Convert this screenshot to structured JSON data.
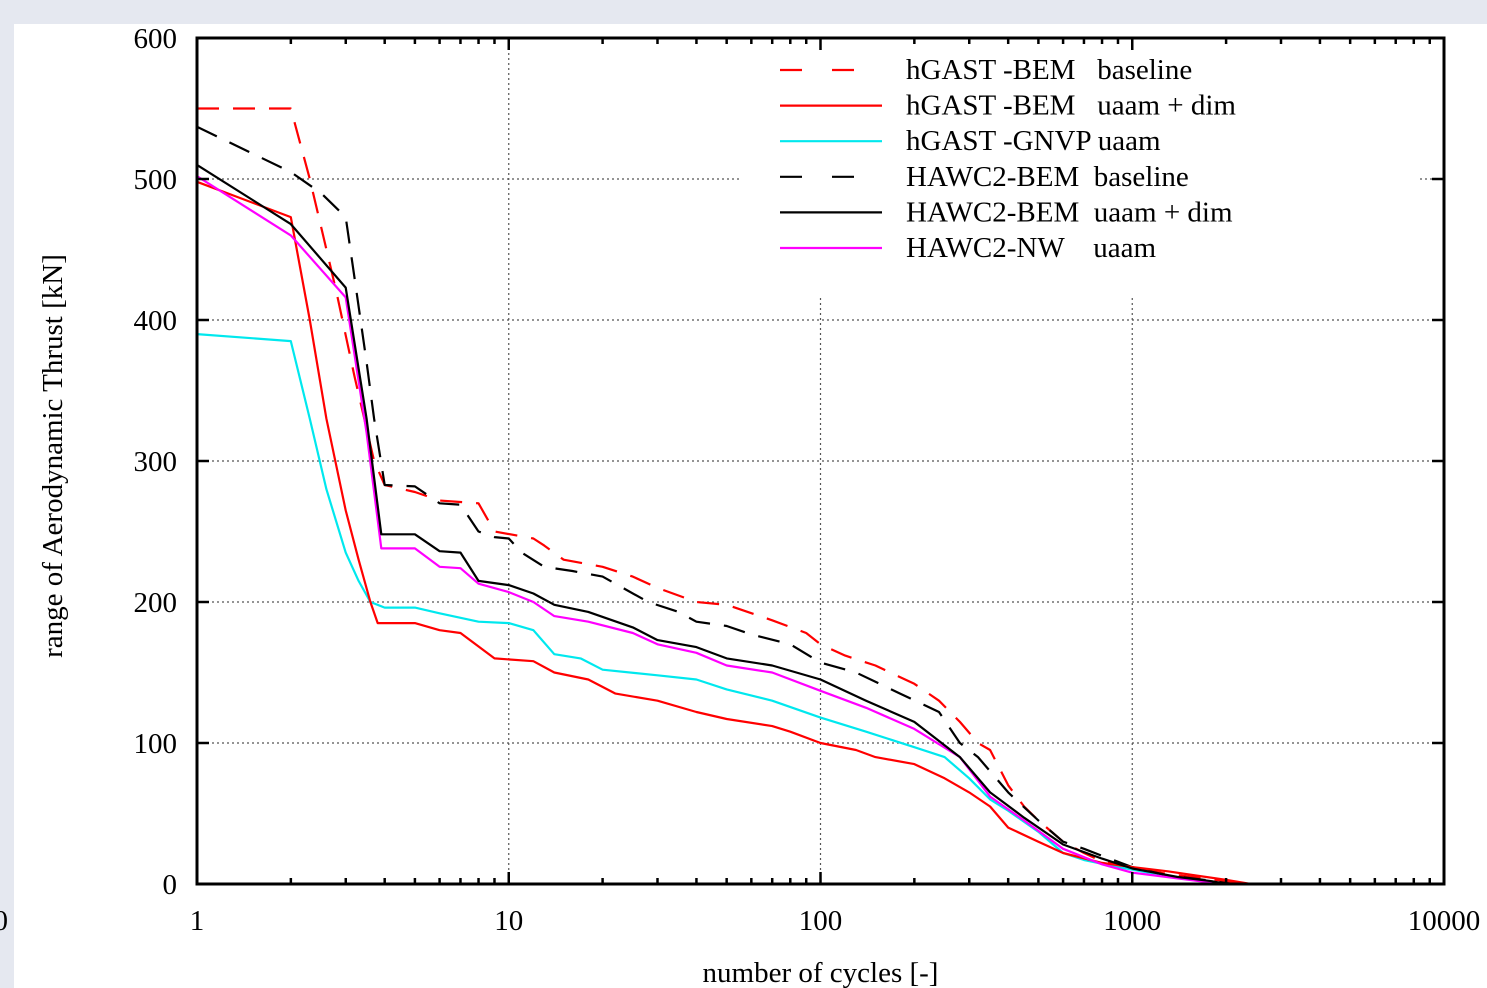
{
  "chart_data": {
    "type": "line",
    "title": "",
    "xlabel": "number of cycles [-]",
    "ylabel": "range of  Aerodynamic Thrust [kN]",
    "x_scale": "log",
    "xlim": [
      1,
      10000
    ],
    "ylim": [
      0,
      600
    ],
    "x_ticks": [
      1,
      10,
      100,
      1000,
      10000
    ],
    "x_tick_labels": [
      "1",
      "10",
      "100",
      "1000",
      "10000"
    ],
    "y_ticks": [
      0,
      100,
      200,
      300,
      400,
      500,
      600
    ],
    "y_tick_labels": [
      "0",
      "100",
      "200",
      "300",
      "400",
      "500",
      "600"
    ],
    "stray_left_label": "0",
    "grid": true,
    "legend_position": "top-right",
    "series": [
      {
        "name": "hGAST -BEM   baseline",
        "color": "#ff0000",
        "dash": "dashed",
        "points": [
          [
            1,
            550
          ],
          [
            2,
            550
          ],
          [
            2.3,
            500
          ],
          [
            2.8,
            420
          ],
          [
            3.2,
            360
          ],
          [
            3.7,
            300
          ],
          [
            4,
            283
          ],
          [
            5,
            278
          ],
          [
            6,
            272
          ],
          [
            8,
            270
          ],
          [
            9,
            250
          ],
          [
            12,
            245
          ],
          [
            13,
            240
          ],
          [
            15,
            230
          ],
          [
            20,
            225
          ],
          [
            25,
            218
          ],
          [
            30,
            210
          ],
          [
            40,
            200
          ],
          [
            50,
            198
          ],
          [
            70,
            187
          ],
          [
            90,
            178
          ],
          [
            100,
            170
          ],
          [
            120,
            162
          ],
          [
            150,
            155
          ],
          [
            200,
            142
          ],
          [
            240,
            130
          ],
          [
            280,
            115
          ],
          [
            320,
            100
          ],
          [
            350,
            95
          ],
          [
            400,
            70
          ],
          [
            450,
            55
          ],
          [
            500,
            45
          ],
          [
            600,
            30
          ],
          [
            700,
            22
          ],
          [
            800,
            16
          ],
          [
            1000,
            12
          ],
          [
            1300,
            7
          ],
          [
            1700,
            4
          ],
          [
            2000,
            2
          ],
          [
            2400,
            0
          ]
        ]
      },
      {
        "name": "hGAST -BEM   uaam + dim",
        "color": "#ff0000",
        "dash": "solid",
        "points": [
          [
            1,
            498
          ],
          [
            2,
            473
          ],
          [
            2.3,
            400
          ],
          [
            2.6,
            330
          ],
          [
            3,
            265
          ],
          [
            3.3,
            230
          ],
          [
            3.6,
            200
          ],
          [
            3.8,
            185
          ],
          [
            5,
            185
          ],
          [
            6,
            180
          ],
          [
            7,
            178
          ],
          [
            9,
            160
          ],
          [
            12,
            158
          ],
          [
            14,
            150
          ],
          [
            18,
            145
          ],
          [
            22,
            135
          ],
          [
            30,
            130
          ],
          [
            40,
            122
          ],
          [
            50,
            117
          ],
          [
            70,
            112
          ],
          [
            80,
            108
          ],
          [
            100,
            100
          ],
          [
            130,
            95
          ],
          [
            150,
            90
          ],
          [
            200,
            85
          ],
          [
            250,
            75
          ],
          [
            300,
            65
          ],
          [
            350,
            55
          ],
          [
            400,
            40
          ],
          [
            500,
            30
          ],
          [
            600,
            22
          ],
          [
            800,
            15
          ],
          [
            1000,
            12
          ],
          [
            1300,
            9
          ],
          [
            1600,
            6
          ],
          [
            2000,
            3
          ],
          [
            2400,
            0
          ]
        ]
      },
      {
        "name": "hGAST -GNVP uaam",
        "color": "#00e8ee",
        "dash": "solid",
        "points": [
          [
            1,
            390
          ],
          [
            2,
            385
          ],
          [
            2.3,
            330
          ],
          [
            2.6,
            280
          ],
          [
            3,
            235
          ],
          [
            3.3,
            215
          ],
          [
            3.6,
            200
          ],
          [
            4,
            196
          ],
          [
            5,
            196
          ],
          [
            6,
            192
          ],
          [
            8,
            186
          ],
          [
            10,
            185
          ],
          [
            12,
            180
          ],
          [
            14,
            163
          ],
          [
            17,
            160
          ],
          [
            20,
            152
          ],
          [
            30,
            148
          ],
          [
            40,
            145
          ],
          [
            50,
            138
          ],
          [
            70,
            130
          ],
          [
            100,
            118
          ],
          [
            140,
            108
          ],
          [
            200,
            97
          ],
          [
            250,
            90
          ],
          [
            300,
            75
          ],
          [
            350,
            60
          ],
          [
            400,
            52
          ],
          [
            500,
            37
          ],
          [
            600,
            22
          ],
          [
            700,
            17
          ],
          [
            900,
            12
          ],
          [
            1200,
            7
          ],
          [
            1600,
            3
          ],
          [
            2000,
            0
          ]
        ]
      },
      {
        "name": "HAWC2-BEM  baseline",
        "color": "#000000",
        "dash": "dashed",
        "points": [
          [
            1,
            537
          ],
          [
            2,
            505
          ],
          [
            2.5,
            490
          ],
          [
            3,
            473
          ],
          [
            3.2,
            430
          ],
          [
            3.5,
            370
          ],
          [
            3.7,
            330
          ],
          [
            4,
            283
          ],
          [
            5,
            282
          ],
          [
            6,
            270
          ],
          [
            7,
            269
          ],
          [
            8,
            250
          ],
          [
            9,
            246
          ],
          [
            10,
            245
          ],
          [
            11,
            235
          ],
          [
            13,
            225
          ],
          [
            16,
            222
          ],
          [
            20,
            218
          ],
          [
            28,
            200
          ],
          [
            35,
            193
          ],
          [
            40,
            186
          ],
          [
            50,
            183
          ],
          [
            60,
            177
          ],
          [
            80,
            170
          ],
          [
            100,
            157
          ],
          [
            130,
            150
          ],
          [
            180,
            135
          ],
          [
            240,
            122
          ],
          [
            280,
            100
          ],
          [
            320,
            90
          ],
          [
            400,
            65
          ],
          [
            500,
            45
          ],
          [
            600,
            30
          ],
          [
            700,
            25
          ],
          [
            800,
            20
          ],
          [
            1000,
            12
          ],
          [
            1300,
            6
          ],
          [
            1700,
            3
          ],
          [
            2100,
            0
          ]
        ]
      },
      {
        "name": "HAWC2-BEM  uaam + dim",
        "color": "#000000",
        "dash": "solid",
        "points": [
          [
            1,
            510
          ],
          [
            2,
            468
          ],
          [
            3,
            423
          ],
          [
            3.5,
            330
          ],
          [
            3.9,
            248
          ],
          [
            5,
            248
          ],
          [
            6,
            236
          ],
          [
            7,
            235
          ],
          [
            8,
            215
          ],
          [
            10,
            212
          ],
          [
            12,
            206
          ],
          [
            14,
            198
          ],
          [
            18,
            193
          ],
          [
            25,
            182
          ],
          [
            30,
            173
          ],
          [
            40,
            168
          ],
          [
            50,
            160
          ],
          [
            70,
            155
          ],
          [
            100,
            145
          ],
          [
            140,
            130
          ],
          [
            200,
            115
          ],
          [
            280,
            90
          ],
          [
            350,
            65
          ],
          [
            450,
            47
          ],
          [
            600,
            28
          ],
          [
            800,
            18
          ],
          [
            1000,
            11
          ],
          [
            1400,
            5
          ],
          [
            1800,
            2
          ],
          [
            2000,
            0
          ]
        ]
      },
      {
        "name": "HAWC2-NW    uaam",
        "color": "#ff00ff",
        "dash": "solid",
        "points": [
          [
            1,
            502
          ],
          [
            2,
            460
          ],
          [
            3,
            416
          ],
          [
            3.5,
            320
          ],
          [
            3.9,
            238
          ],
          [
            5,
            238
          ],
          [
            6,
            225
          ],
          [
            7,
            224
          ],
          [
            8,
            213
          ],
          [
            10,
            207
          ],
          [
            12,
            200
          ],
          [
            14,
            190
          ],
          [
            18,
            186
          ],
          [
            25,
            178
          ],
          [
            30,
            170
          ],
          [
            40,
            164
          ],
          [
            50,
            155
          ],
          [
            70,
            150
          ],
          [
            100,
            137
          ],
          [
            140,
            125
          ],
          [
            200,
            110
          ],
          [
            280,
            90
          ],
          [
            350,
            62
          ],
          [
            450,
            45
          ],
          [
            600,
            25
          ],
          [
            800,
            14
          ],
          [
            1000,
            8
          ],
          [
            1400,
            4
          ],
          [
            1800,
            1
          ],
          [
            2000,
            0
          ]
        ]
      }
    ]
  }
}
